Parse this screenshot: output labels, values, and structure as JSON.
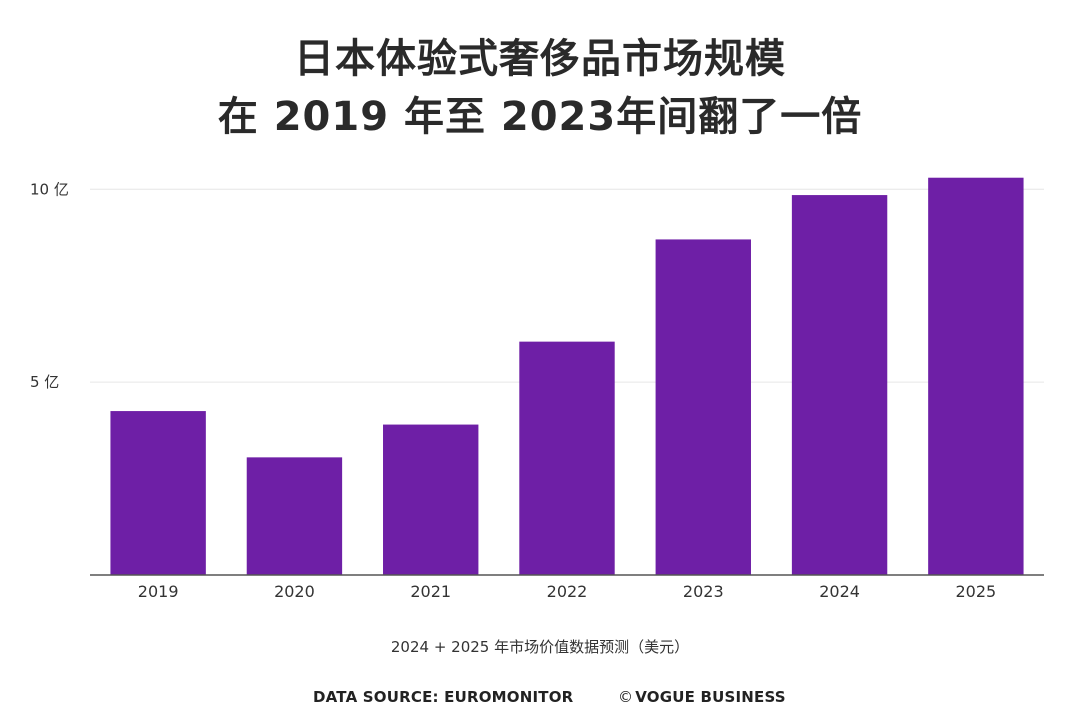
{
  "header": {
    "title_line1": "日本体验式奢侈品市场规模",
    "title_line2": "在 2019 年至 2023年间翻了一倍"
  },
  "chart_data": {
    "type": "bar",
    "title": "日本体验式奢侈品市场规模 在 2019 年至 2023年间翻了一倍",
    "categories": [
      "2019",
      "2020",
      "2021",
      "2022",
      "2023",
      "2024",
      "2025"
    ],
    "values": [
      4.25,
      3.05,
      3.9,
      6.05,
      8.7,
      9.85,
      10.3
    ],
    "unit": "亿",
    "ylim": [
      0,
      10.5
    ],
    "yticks": [
      {
        "value": 5,
        "label": "5 亿"
      },
      {
        "value": 10,
        "label": "10 亿"
      }
    ],
    "xlabel": "",
    "ylabel": "",
    "grid": true,
    "bar_color": "#6e1fa6",
    "note": "2024 + 2025 年市场价值数据预测（美元）"
  },
  "footer": {
    "source": "DATA SOURCE: EUROMONITOR",
    "copyright_symbol": "©",
    "credit": "VOGUE BUSINESS"
  }
}
